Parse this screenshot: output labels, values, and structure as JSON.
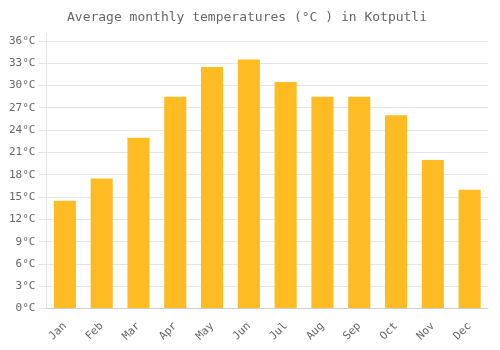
{
  "chart_data": {
    "type": "bar",
    "title": "Average monthly temperatures (°C ) in Kotputli",
    "categories": [
      "Jan",
      "Feb",
      "Mar",
      "Apr",
      "May",
      "Jun",
      "Jul",
      "Aug",
      "Sep",
      "Oct",
      "Nov",
      "Dec"
    ],
    "values": [
      14.5,
      17.5,
      23.0,
      28.5,
      32.5,
      33.5,
      30.5,
      28.5,
      28.5,
      26.0,
      20.0,
      16.0
    ],
    "color": "#FFBB22",
    "ylim": [
      0,
      37
    ],
    "yticks": [
      {
        "value": 0,
        "label": "0°C"
      },
      {
        "value": 3,
        "label": "3°C"
      },
      {
        "value": 6,
        "label": "6°C"
      },
      {
        "value": 9,
        "label": "9°C"
      },
      {
        "value": 12,
        "label": "12°C"
      },
      {
        "value": 15,
        "label": "15°C"
      },
      {
        "value": 18,
        "label": "18°C"
      },
      {
        "value": 21,
        "label": "21°C"
      },
      {
        "value": 24,
        "label": "24°C"
      },
      {
        "value": 27,
        "label": "27°C"
      },
      {
        "value": 30,
        "label": "30°C"
      },
      {
        "value": 33,
        "label": "33°C"
      },
      {
        "value": 36,
        "label": "36°C"
      }
    ],
    "grid": true
  }
}
